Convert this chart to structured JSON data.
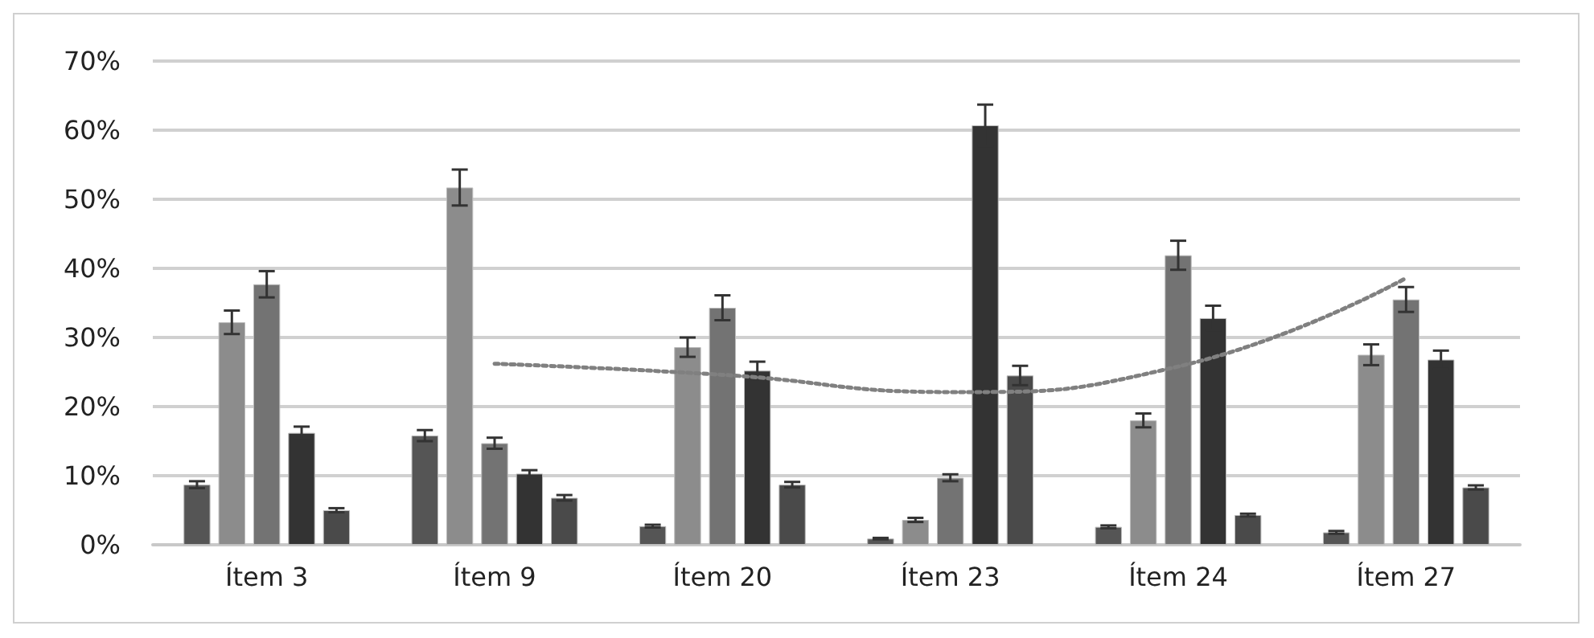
{
  "chart_data": {
    "type": "bar",
    "categories": [
      "Ítem 3",
      "Ítem 9",
      "Ítem 20",
      "Ítem 23",
      "Ítem 24",
      "Ítem 27"
    ],
    "series": [
      {
        "color": "#555555",
        "values": [
          8.7,
          15.8,
          2.7,
          0.9,
          2.6,
          1.8
        ],
        "errors": [
          0.5,
          0.8,
          0.2,
          0.1,
          0.2,
          0.2
        ]
      },
      {
        "color": "#8c8c8c",
        "values": [
          32.2,
          51.7,
          28.6,
          3.6,
          18.0,
          27.5
        ],
        "errors": [
          1.7,
          2.6,
          1.4,
          0.3,
          1.0,
          1.5
        ]
      },
      {
        "color": "#737373",
        "values": [
          37.7,
          14.7,
          34.3,
          9.7,
          41.9,
          35.5
        ],
        "errors": [
          1.9,
          0.8,
          1.8,
          0.5,
          2.1,
          1.8
        ]
      },
      {
        "color": "#333333",
        "values": [
          16.2,
          10.3,
          25.2,
          60.7,
          32.8,
          26.8
        ],
        "errors": [
          0.9,
          0.5,
          1.3,
          3.0,
          1.8,
          1.3
        ]
      },
      {
        "color": "#4a4a4a",
        "values": [
          5.0,
          6.8,
          8.7,
          24.5,
          4.3,
          8.3
        ],
        "errors": [
          0.3,
          0.4,
          0.4,
          1.4,
          0.2,
          0.3
        ]
      },
      {
        "type": "line",
        "color": "#808080",
        "values": [
          null,
          26.2,
          24.6,
          22.1,
          25.8,
          38.6
        ],
        "line_style": "dotted",
        "marker": "none"
      }
    ],
    "ylim": [
      0,
      70
    ],
    "yticks": [
      {
        "value": 0,
        "label": "0%"
      },
      {
        "value": 10,
        "label": "10%"
      },
      {
        "value": 20,
        "label": "20%"
      },
      {
        "value": 30,
        "label": "30%"
      },
      {
        "value": 40,
        "label": "40%"
      },
      {
        "value": 50,
        "label": "50%"
      },
      {
        "value": 60,
        "label": "60%"
      },
      {
        "value": 70,
        "label": "70%"
      }
    ],
    "grid": "y"
  }
}
